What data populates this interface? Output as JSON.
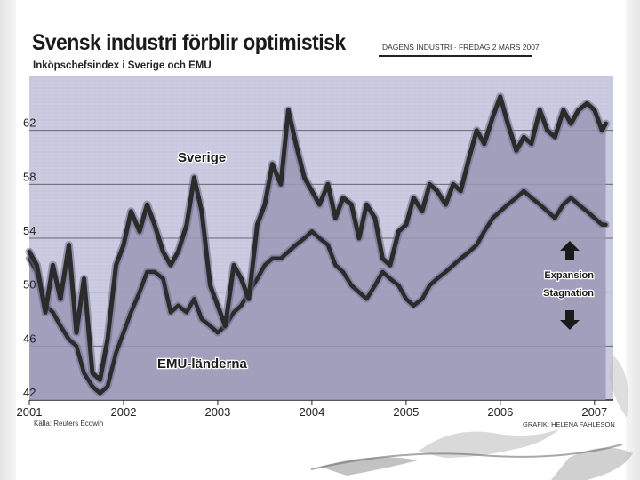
{
  "header": {
    "title": "Svensk industri förblir optimistisk",
    "subtitle": "Inköpschefsindex i Sverige och EMU",
    "source": "DAGENS INDUSTRI · FREDAG 2 MARS 2007"
  },
  "footer": {
    "source_left": "Källa: Reuters Ecowin",
    "credit_right": "GRAFIK: HELENA FAHLESON"
  },
  "colors": {
    "plot_background": "#c9c9df",
    "fill_sverige": "#9a98b6",
    "line": "#2b2b2b",
    "text": "#1a1a1a"
  },
  "chart_data": {
    "type": "area",
    "title": "Svensk industri förblir optimistisk",
    "subtitle": "Inköpschefsindex i Sverige och EMU",
    "xlabel": "",
    "ylabel": "",
    "xlim": [
      2001.0,
      2007.2
    ],
    "ylim": [
      42,
      66
    ],
    "yticks": [
      42,
      46,
      50,
      54,
      58,
      62
    ],
    "xticks": [
      2001,
      2002,
      2003,
      2004,
      2005,
      2006,
      2007
    ],
    "grid": true,
    "series": [
      {
        "name": "Sverige",
        "x": [
          2001.0,
          2001.08,
          2001.17,
          2001.25,
          2001.33,
          2001.42,
          2001.5,
          2001.58,
          2001.67,
          2001.75,
          2001.83,
          2001.92,
          2002.0,
          2002.08,
          2002.17,
          2002.25,
          2002.33,
          2002.42,
          2002.5,
          2002.58,
          2002.67,
          2002.75,
          2002.83,
          2002.92,
          2003.0,
          2003.08,
          2003.17,
          2003.25,
          2003.33,
          2003.42,
          2003.5,
          2003.58,
          2003.67,
          2003.75,
          2003.83,
          2003.92,
          2004.0,
          2004.08,
          2004.17,
          2004.25,
          2004.33,
          2004.42,
          2004.5,
          2004.58,
          2004.67,
          2004.75,
          2004.83,
          2004.92,
          2005.0,
          2005.08,
          2005.17,
          2005.25,
          2005.33,
          2005.42,
          2005.5,
          2005.58,
          2005.67,
          2005.75,
          2005.83,
          2005.92,
          2006.0,
          2006.08,
          2006.17,
          2006.25,
          2006.33,
          2006.42,
          2006.5,
          2006.58,
          2006.67,
          2006.75,
          2006.83,
          2006.92,
          2007.0,
          2007.08,
          2007.12
        ],
        "values": [
          53.0,
          52.0,
          48.5,
          52.0,
          49.5,
          53.5,
          47.0,
          51.0,
          44.0,
          43.5,
          46.5,
          52.0,
          53.5,
          56.0,
          54.5,
          56.5,
          55.0,
          53.0,
          52.0,
          53.0,
          55.0,
          58.5,
          56.0,
          50.5,
          49.0,
          47.5,
          52.0,
          51.0,
          49.5,
          55.0,
          56.5,
          59.5,
          58.0,
          63.5,
          61.0,
          58.5,
          57.5,
          56.5,
          58.0,
          55.5,
          57.0,
          56.5,
          54.0,
          56.5,
          55.5,
          52.5,
          52.0,
          54.5,
          55.0,
          57.0,
          56.0,
          58.0,
          57.5,
          56.5,
          58.0,
          57.5,
          60.0,
          62.0,
          61.0,
          63.0,
          64.5,
          62.5,
          60.5,
          61.5,
          61.0,
          63.5,
          62.0,
          61.5,
          63.5,
          62.5,
          63.5,
          64.0,
          63.5,
          62.0,
          62.5
        ]
      },
      {
        "name": "EMU-länderna",
        "x": [
          2001.0,
          2001.08,
          2001.17,
          2001.25,
          2001.33,
          2001.42,
          2001.5,
          2001.58,
          2001.67,
          2001.75,
          2001.83,
          2001.92,
          2002.0,
          2002.08,
          2002.17,
          2002.25,
          2002.33,
          2002.42,
          2002.5,
          2002.58,
          2002.67,
          2002.75,
          2002.83,
          2002.92,
          2003.0,
          2003.08,
          2003.17,
          2003.25,
          2003.33,
          2003.42,
          2003.5,
          2003.58,
          2003.67,
          2003.75,
          2003.83,
          2003.92,
          2004.0,
          2004.08,
          2004.17,
          2004.25,
          2004.33,
          2004.42,
          2004.5,
          2004.58,
          2004.67,
          2004.75,
          2004.83,
          2004.92,
          2005.0,
          2005.08,
          2005.17,
          2005.25,
          2005.33,
          2005.42,
          2005.5,
          2005.58,
          2005.67,
          2005.75,
          2005.83,
          2005.92,
          2006.0,
          2006.08,
          2006.17,
          2006.25,
          2006.33,
          2006.42,
          2006.5,
          2006.58,
          2006.67,
          2006.75,
          2006.83,
          2006.92,
          2007.0,
          2007.08,
          2007.12
        ],
        "values": [
          52.5,
          51.5,
          49.0,
          48.5,
          47.5,
          46.5,
          46.0,
          44.0,
          43.0,
          42.5,
          43.0,
          45.5,
          47.0,
          48.5,
          50.0,
          51.5,
          51.5,
          51.0,
          48.5,
          49.0,
          48.5,
          49.5,
          48.0,
          47.5,
          47.0,
          47.5,
          48.5,
          49.0,
          50.0,
          51.0,
          52.0,
          52.5,
          52.5,
          53.0,
          53.5,
          54.0,
          54.5,
          54.0,
          53.5,
          52.0,
          51.5,
          50.5,
          50.0,
          49.5,
          50.5,
          51.5,
          51.0,
          50.5,
          49.5,
          49.0,
          49.5,
          50.5,
          51.0,
          51.5,
          52.0,
          52.5,
          53.0,
          53.5,
          54.5,
          55.5,
          56.0,
          56.5,
          57.0,
          57.5,
          57.0,
          56.5,
          56.0,
          55.5,
          56.5,
          57.0,
          56.5,
          56.0,
          55.5,
          55.0,
          55.0
        ]
      }
    ],
    "annotations": {
      "label_sverige": "Sverige",
      "label_emu": "EMU-länderna",
      "expansion": "Expansion",
      "stagnation": "Stagnation"
    }
  }
}
